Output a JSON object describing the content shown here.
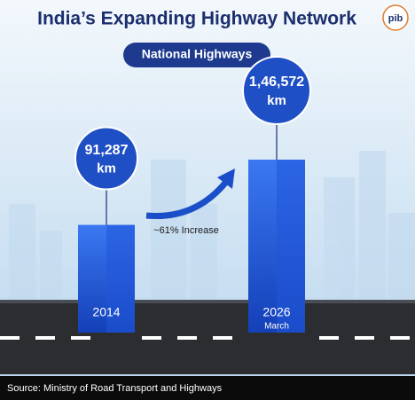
{
  "logo": "pib",
  "chart_data": {
    "type": "bar",
    "title": "India’s Expanding Highway Network",
    "subtitle": "National Highways",
    "categories": [
      "2014",
      "2026"
    ],
    "category_sublabels": [
      null,
      "March"
    ],
    "values": [
      91287,
      146572
    ],
    "value_labels": [
      "91,287",
      "1,46,572"
    ],
    "unit": "km",
    "color": "#2156d9",
    "annotation": "~61% Increase",
    "source": "Source: Ministry of Road Transport and Highways"
  }
}
